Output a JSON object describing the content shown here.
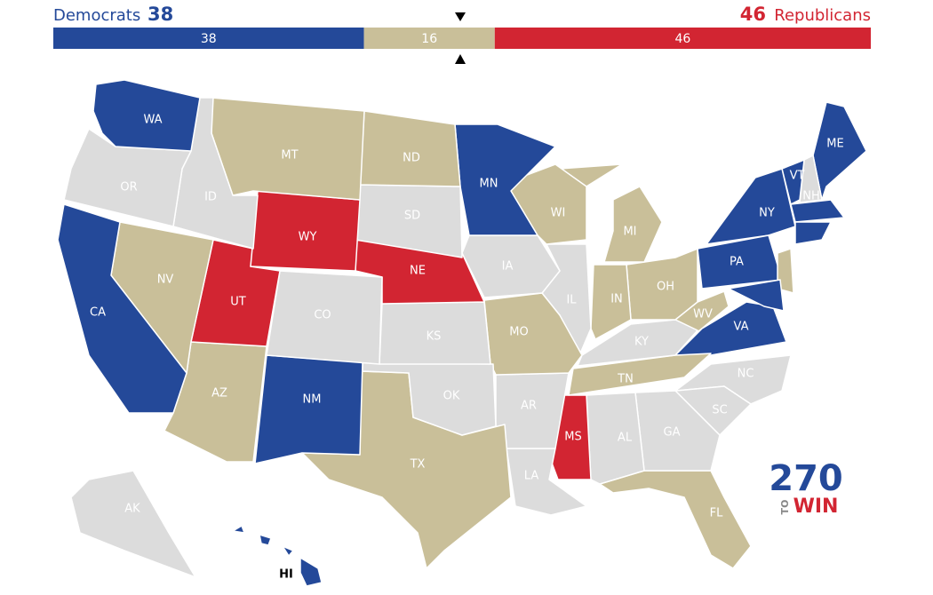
{
  "header": {
    "dem_label": "Democrats",
    "dem_count": "38",
    "rep_count": "46",
    "rep_label": "Republicans"
  },
  "bar": {
    "total": 100,
    "segments": [
      {
        "value": 38,
        "color": "#244999"
      },
      {
        "value": 16,
        "color": "#c9bf99"
      },
      {
        "value": 46,
        "color": "#d22532"
      }
    ]
  },
  "states": [
    {
      "label": "WA",
      "color": "#244999"
    },
    {
      "label": "OR",
      "color": "#dcdcdc"
    },
    {
      "label": "CA",
      "color": "#244999"
    },
    {
      "label": "ID",
      "color": "#dcdcdc"
    },
    {
      "label": "NV",
      "color": "#c9bf99"
    },
    {
      "label": "MT",
      "color": "#c9bf99"
    },
    {
      "label": "WY",
      "color": "#d22532"
    },
    {
      "label": "UT",
      "color": "#d22532"
    },
    {
      "label": "AZ",
      "color": "#c9bf99"
    },
    {
      "label": "CO",
      "color": "#dcdcdc"
    },
    {
      "label": "NM",
      "color": "#244999"
    },
    {
      "label": "ND",
      "color": "#c9bf99"
    },
    {
      "label": "SD",
      "color": "#dcdcdc"
    },
    {
      "label": "NE",
      "color": "#d22532"
    },
    {
      "label": "KS",
      "color": "#dcdcdc"
    },
    {
      "label": "OK",
      "color": "#dcdcdc"
    },
    {
      "label": "TX",
      "color": "#c9bf99"
    },
    {
      "label": "MN",
      "color": "#244999"
    },
    {
      "label": "IA",
      "color": "#dcdcdc"
    },
    {
      "label": "MO",
      "color": "#c9bf99"
    },
    {
      "label": "AR",
      "color": "#dcdcdc"
    },
    {
      "label": "LA",
      "color": "#dcdcdc"
    },
    {
      "label": "WI",
      "color": "#c9bf99"
    },
    {
      "label": "IL",
      "color": "#dcdcdc"
    },
    {
      "label": "MI",
      "color": "#c9bf99"
    },
    {
      "label": "IN",
      "color": "#c9bf99"
    },
    {
      "label": "OH",
      "color": "#c9bf99"
    },
    {
      "label": "KY",
      "color": "#dcdcdc"
    },
    {
      "label": "TN",
      "color": "#c9bf99"
    },
    {
      "label": "MS",
      "color": "#d22532"
    },
    {
      "label": "AL",
      "color": "#dcdcdc"
    },
    {
      "label": "GA",
      "color": "#dcdcdc"
    },
    {
      "label": "FL",
      "color": "#c9bf99"
    },
    {
      "label": "SC",
      "color": "#dcdcdc"
    },
    {
      "label": "NC",
      "color": "#dcdcdc"
    },
    {
      "label": "VA",
      "color": "#244999"
    },
    {
      "label": "WV",
      "color": "#c9bf99"
    },
    {
      "label": "PA",
      "color": "#244999"
    },
    {
      "label": "NY",
      "color": "#244999"
    },
    {
      "label": "VT",
      "color": "#244999"
    },
    {
      "label": "NH",
      "color": "#dcdcdc"
    },
    {
      "label": "ME",
      "color": "#244999"
    },
    {
      "label": "AK",
      "color": "#dcdcdc"
    },
    {
      "label": "HI",
      "color": "#244999"
    }
  ],
  "logo": {
    "number": "270",
    "to": "TO",
    "win": "WIN"
  }
}
